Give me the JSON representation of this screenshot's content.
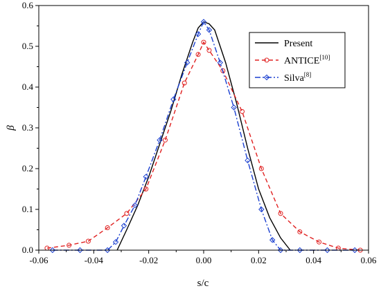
{
  "chart_data": {
    "type": "line",
    "xlabel": "s/c",
    "ylabel": "β",
    "xlim": [
      -0.06,
      0.06
    ],
    "ylim": [
      0.0,
      0.6
    ],
    "xticks": [
      "-0.06",
      "-0.04",
      "-0.02",
      "0.00",
      "0.02",
      "0.04",
      "0.06"
    ],
    "yticks": [
      "0.0",
      "0.1",
      "0.2",
      "0.3",
      "0.4",
      "0.5",
      "0.6"
    ],
    "grid": false,
    "legend_position": "top-right",
    "series": [
      {
        "name": "Present",
        "name_sup": "",
        "color": "#000000",
        "style": "solid",
        "marker": "none",
        "x": [
          -0.0315,
          -0.028,
          -0.024,
          -0.02,
          -0.016,
          -0.012,
          -0.008,
          -0.004,
          -0.002,
          0.0,
          0.002,
          0.004,
          0.008,
          0.012,
          0.016,
          0.02,
          0.024,
          0.028,
          0.0315
        ],
        "y": [
          0.0,
          0.05,
          0.11,
          0.18,
          0.26,
          0.34,
          0.43,
          0.51,
          0.545,
          0.56,
          0.555,
          0.54,
          0.46,
          0.36,
          0.25,
          0.15,
          0.08,
          0.03,
          0.0
        ]
      },
      {
        "name": "ANTICE",
        "name_sup": "[10]",
        "color": "#e02020",
        "style": "dashed",
        "marker": "circle",
        "x": [
          -0.057,
          -0.049,
          -0.042,
          -0.035,
          -0.028,
          -0.021,
          -0.014,
          -0.007,
          -0.002,
          0.0,
          0.002,
          0.007,
          0.014,
          0.021,
          0.028,
          0.035,
          0.042,
          0.049,
          0.057
        ],
        "y": [
          0.005,
          0.012,
          0.022,
          0.055,
          0.09,
          0.15,
          0.27,
          0.41,
          0.48,
          0.51,
          0.49,
          0.44,
          0.34,
          0.2,
          0.09,
          0.045,
          0.02,
          0.005,
          0.0
        ]
      },
      {
        "name": "Silva",
        "name_sup": "[8]",
        "color": "#1a3fd0",
        "style": "dashdot",
        "marker": "diamond",
        "x": [
          -0.055,
          -0.045,
          -0.035,
          -0.032,
          -0.029,
          -0.025,
          -0.021,
          -0.016,
          -0.011,
          -0.006,
          -0.002,
          0.0,
          0.002,
          0.006,
          0.011,
          0.016,
          0.021,
          0.025,
          0.028,
          0.035,
          0.045,
          0.055
        ],
        "y": [
          0.0,
          0.0,
          0.0,
          0.02,
          0.06,
          0.11,
          0.18,
          0.27,
          0.37,
          0.46,
          0.53,
          0.56,
          0.54,
          0.46,
          0.35,
          0.22,
          0.1,
          0.025,
          0.0,
          0.0,
          0.0,
          0.0
        ]
      }
    ]
  }
}
